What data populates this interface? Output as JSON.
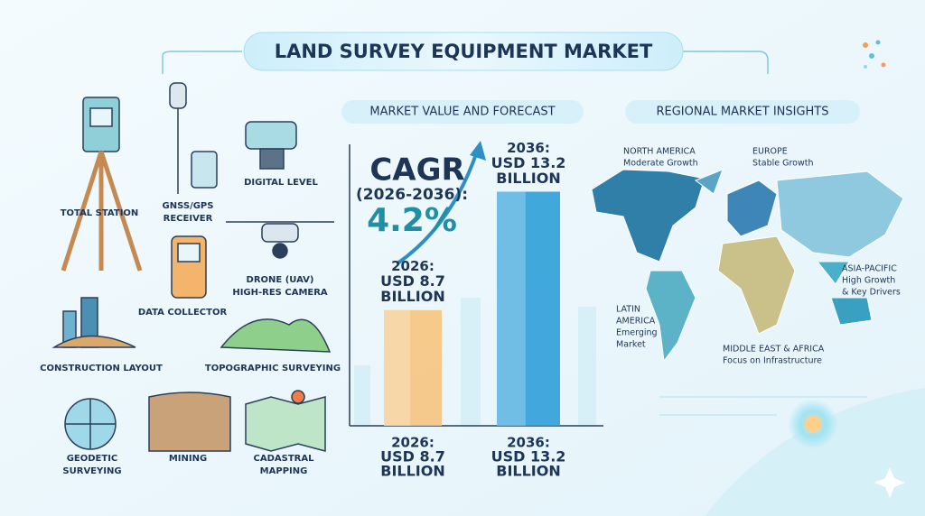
{
  "header": {
    "title": "LAND SURVEY EQUIPMENT MARKET"
  },
  "applications": [
    {
      "lines": [
        "TOTAL STATION"
      ]
    },
    {
      "lines": [
        "GNSS/GPS",
        "RECEIVER"
      ]
    },
    {
      "lines": [
        "DIGITAL LEVEL"
      ]
    },
    {
      "lines": [
        "DRONE (UAV)",
        "HIGH-RES CAMERA"
      ]
    },
    {
      "lines": [
        "DATA COLLECTOR"
      ]
    },
    {
      "lines": [
        "CONSTRUCTION LAYOUT"
      ]
    },
    {
      "lines": [
        "TOPOGRAPHIC SURVEYING"
      ]
    },
    {
      "lines": [
        "GEODETIC",
        "SURVEYING"
      ]
    },
    {
      "lines": [
        "MINING"
      ]
    },
    {
      "lines": [
        "CADASTRAL",
        "MAPPING"
      ]
    }
  ],
  "chart_data": {
    "type": "bar",
    "title": "MARKET VALUE AND FORECAST",
    "categories": [
      "2026:",
      "2036:"
    ],
    "values": [
      8.7,
      13.2
    ],
    "value_labels": [
      "USD 8.7",
      "USD 13.2"
    ],
    "unit": "BILLION",
    "colors": [
      "#f6c47e",
      "#2f9fd8"
    ],
    "ylim": [
      4.3,
      15
    ],
    "annotation": {
      "label": "CAGR",
      "period": "(2026-2036):",
      "value": "4.2%"
    }
  },
  "regions": {
    "title": "REGIONAL MARKET INSIGHTS",
    "items": [
      {
        "name": [
          "NORTH AMERICA"
        ],
        "note": [
          "Moderate Growth"
        ]
      },
      {
        "name": [
          "EUROPE"
        ],
        "note": [
          "Stable Growth"
        ]
      },
      {
        "name": [
          "ASIA-PACIFIC"
        ],
        "note": [
          "High Growth",
          "& Key Drivers"
        ]
      },
      {
        "name": [
          "LATIN",
          "AMERICA"
        ],
        "note": [
          "Emerging",
          "Market"
        ]
      },
      {
        "name": [
          "MIDDLE EAST & AFRICA"
        ],
        "note": [
          "Focus on Infrastructure"
        ]
      }
    ]
  }
}
